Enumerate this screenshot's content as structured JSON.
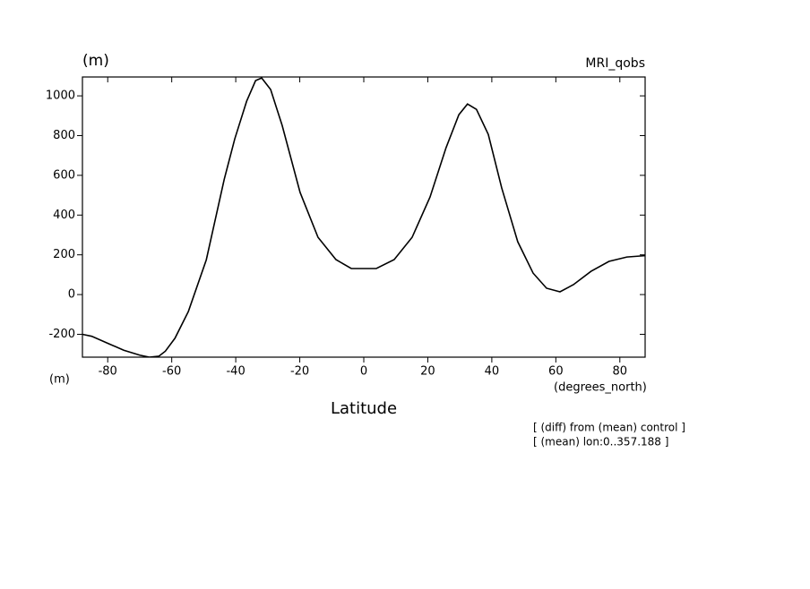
{
  "chart_data": {
    "type": "line",
    "y_unit_label": "(m)",
    "title": "MRI_qobs",
    "x_unit_label": "(m)",
    "x_units": "(degrees_north)",
    "x_label": "Latitude",
    "annotations": [
      "[ (diff) from (mean) control ]",
      "[ (mean) lon:0..357.188 ]"
    ],
    "color": "#000000",
    "x": [
      -87.9,
      -85,
      -80,
      -75,
      -70,
      -67,
      -64,
      -62,
      -59,
      -54.8,
      -49.2,
      -43.6,
      -40.3,
      -36.6,
      -33.8,
      -31.9,
      -29.1,
      -25.5,
      -19.9,
      -14.3,
      -8.7,
      -3.9,
      3.9,
      9.5,
      15.1,
      20.7,
      25.7,
      29.7,
      32.4,
      35.2,
      38.9,
      43.1,
      48.1,
      52.9,
      57.1,
      61.3,
      65.5,
      71.0,
      76.6,
      82.2,
      86.4,
      87.9
    ],
    "values": [
      -200,
      -210,
      -245,
      -280,
      -305,
      -315,
      -310,
      -285,
      -220,
      -85,
      175,
      580,
      784,
      973,
      1077,
      1090,
      1032,
      851,
      514,
      288,
      176,
      131,
      131,
      176,
      288,
      491,
      739,
      905,
      959,
      932,
      806,
      536,
      266,
      108,
      32,
      14,
      50,
      117,
      167,
      189,
      194,
      196
    ],
    "xlim": [
      -87.9,
      87.9
    ],
    "ylim": [
      -315,
      1095
    ],
    "xticks": [
      -80,
      -60,
      -40,
      -20,
      0,
      20,
      40,
      60,
      80
    ],
    "yticks": [
      -200,
      0,
      200,
      400,
      600,
      800,
      1000
    ]
  }
}
